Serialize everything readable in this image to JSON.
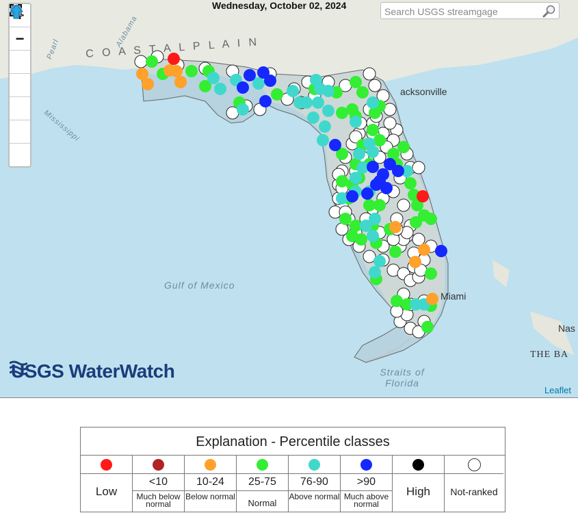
{
  "map": {
    "date_title": "Wednesday, October 02, 2024",
    "search": {
      "placeholder": "Search USGS streamgage",
      "value": ""
    },
    "zoom_controls": [
      {
        "name": "zoom-in-button",
        "glyph": "+"
      },
      {
        "name": "zoom-out-button",
        "glyph": "−"
      },
      {
        "name": "full-extent-button",
        "glyph": "fullscreen-icon"
      },
      {
        "name": "zoom-in-box-button",
        "glyph": "magnifier-plus-icon"
      },
      {
        "name": "zoom-out-box-button",
        "glyph": "magnifier-minus-icon"
      },
      {
        "name": "globe-button",
        "glyph": "globe-icon"
      },
      {
        "name": "home-button",
        "glyph": "up-arrow-icon"
      }
    ],
    "watermark": "USGS WaterWatch",
    "attribution": "Leaflet",
    "labels": {
      "gulf": "Gulf of Mexico",
      "straits": "Straits of Florida",
      "coastal_plain": "C O A S T A L   P L A I N",
      "jacksonville": "acksonville",
      "miami": "Miami",
      "nassau": "Nas",
      "bahamas": "THE BA",
      "mississippi": "Mississippi",
      "alabama": "Alabama",
      "pearl": "Pearl",
      "florida": "FLORIDA"
    }
  },
  "colors": {
    "low": "#ff1a1a",
    "much_below": "#b22222",
    "below": "#ffa12a",
    "normal": "#33ee33",
    "above": "#40d8cc",
    "much_above": "#1428ff",
    "high": "#000000",
    "not_ranked": "#ffffff"
  },
  "legend": {
    "title": "Explanation - Percentile classes",
    "classes": [
      {
        "key": "low",
        "top": "Low",
        "bottom": ""
      },
      {
        "key": "much_below",
        "top": "<10",
        "bottom": "Much below normal"
      },
      {
        "key": "below",
        "top": "10-24",
        "bottom": "Below normal"
      },
      {
        "key": "normal",
        "top": "25-75",
        "bottom": "Normal"
      },
      {
        "key": "above",
        "top": "76-90",
        "bottom": "Above normal"
      },
      {
        "key": "much_above",
        "top": ">90",
        "bottom": "Much above normal"
      },
      {
        "key": "high",
        "top": "High",
        "bottom": ""
      },
      {
        "key": "not_ranked",
        "top": "Not-ranked",
        "bottom": ""
      }
    ]
  }
}
